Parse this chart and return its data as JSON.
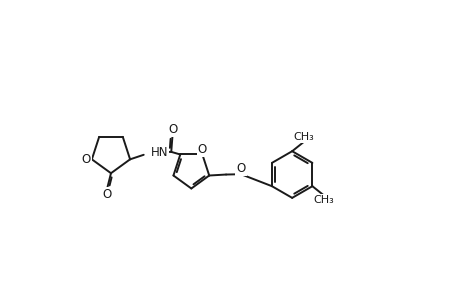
{
  "background_color": "#ffffff",
  "line_color": "#1a1a1a",
  "line_width": 1.4,
  "font_size": 8.5,
  "figsize": [
    4.6,
    3.0
  ],
  "dpi": 100,
  "xlim": [
    -0.5,
    10.5
  ],
  "ylim": [
    -2.2,
    2.8
  ]
}
